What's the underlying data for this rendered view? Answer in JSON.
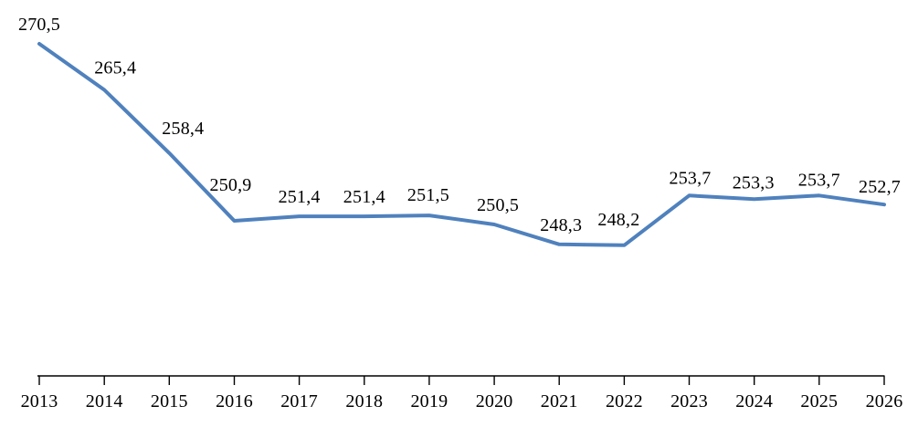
{
  "chart_data": {
    "type": "line",
    "title": "",
    "xlabel": "",
    "ylabel": "",
    "categories": [
      "2013",
      "2014",
      "2015",
      "2016",
      "2017",
      "2018",
      "2019",
      "2020",
      "2021",
      "2022",
      "2023",
      "2024",
      "2025",
      "2026"
    ],
    "series": [
      {
        "name": "",
        "values": [
          270.5,
          265.4,
          258.4,
          250.9,
          251.4,
          251.4,
          251.5,
          250.5,
          248.3,
          248.2,
          253.7,
          253.3,
          253.7,
          252.7
        ],
        "point_labels": [
          "270,5",
          "265,4",
          "258,4",
          "250,9",
          "251,4",
          "251,4",
          "251,5",
          "250,5",
          "248,3",
          "248,2",
          "253,7",
          "253,3",
          "253,7",
          "252,7"
        ]
      }
    ],
    "decimal_separator": ",",
    "ylim": [
      233.5,
      272
    ],
    "grid": false,
    "legend": false,
    "y_axis_visible": false,
    "colors": {
      "line": "#4F81BD",
      "axis": "#000000",
      "text": "#000000",
      "background": "#ffffff"
    }
  }
}
